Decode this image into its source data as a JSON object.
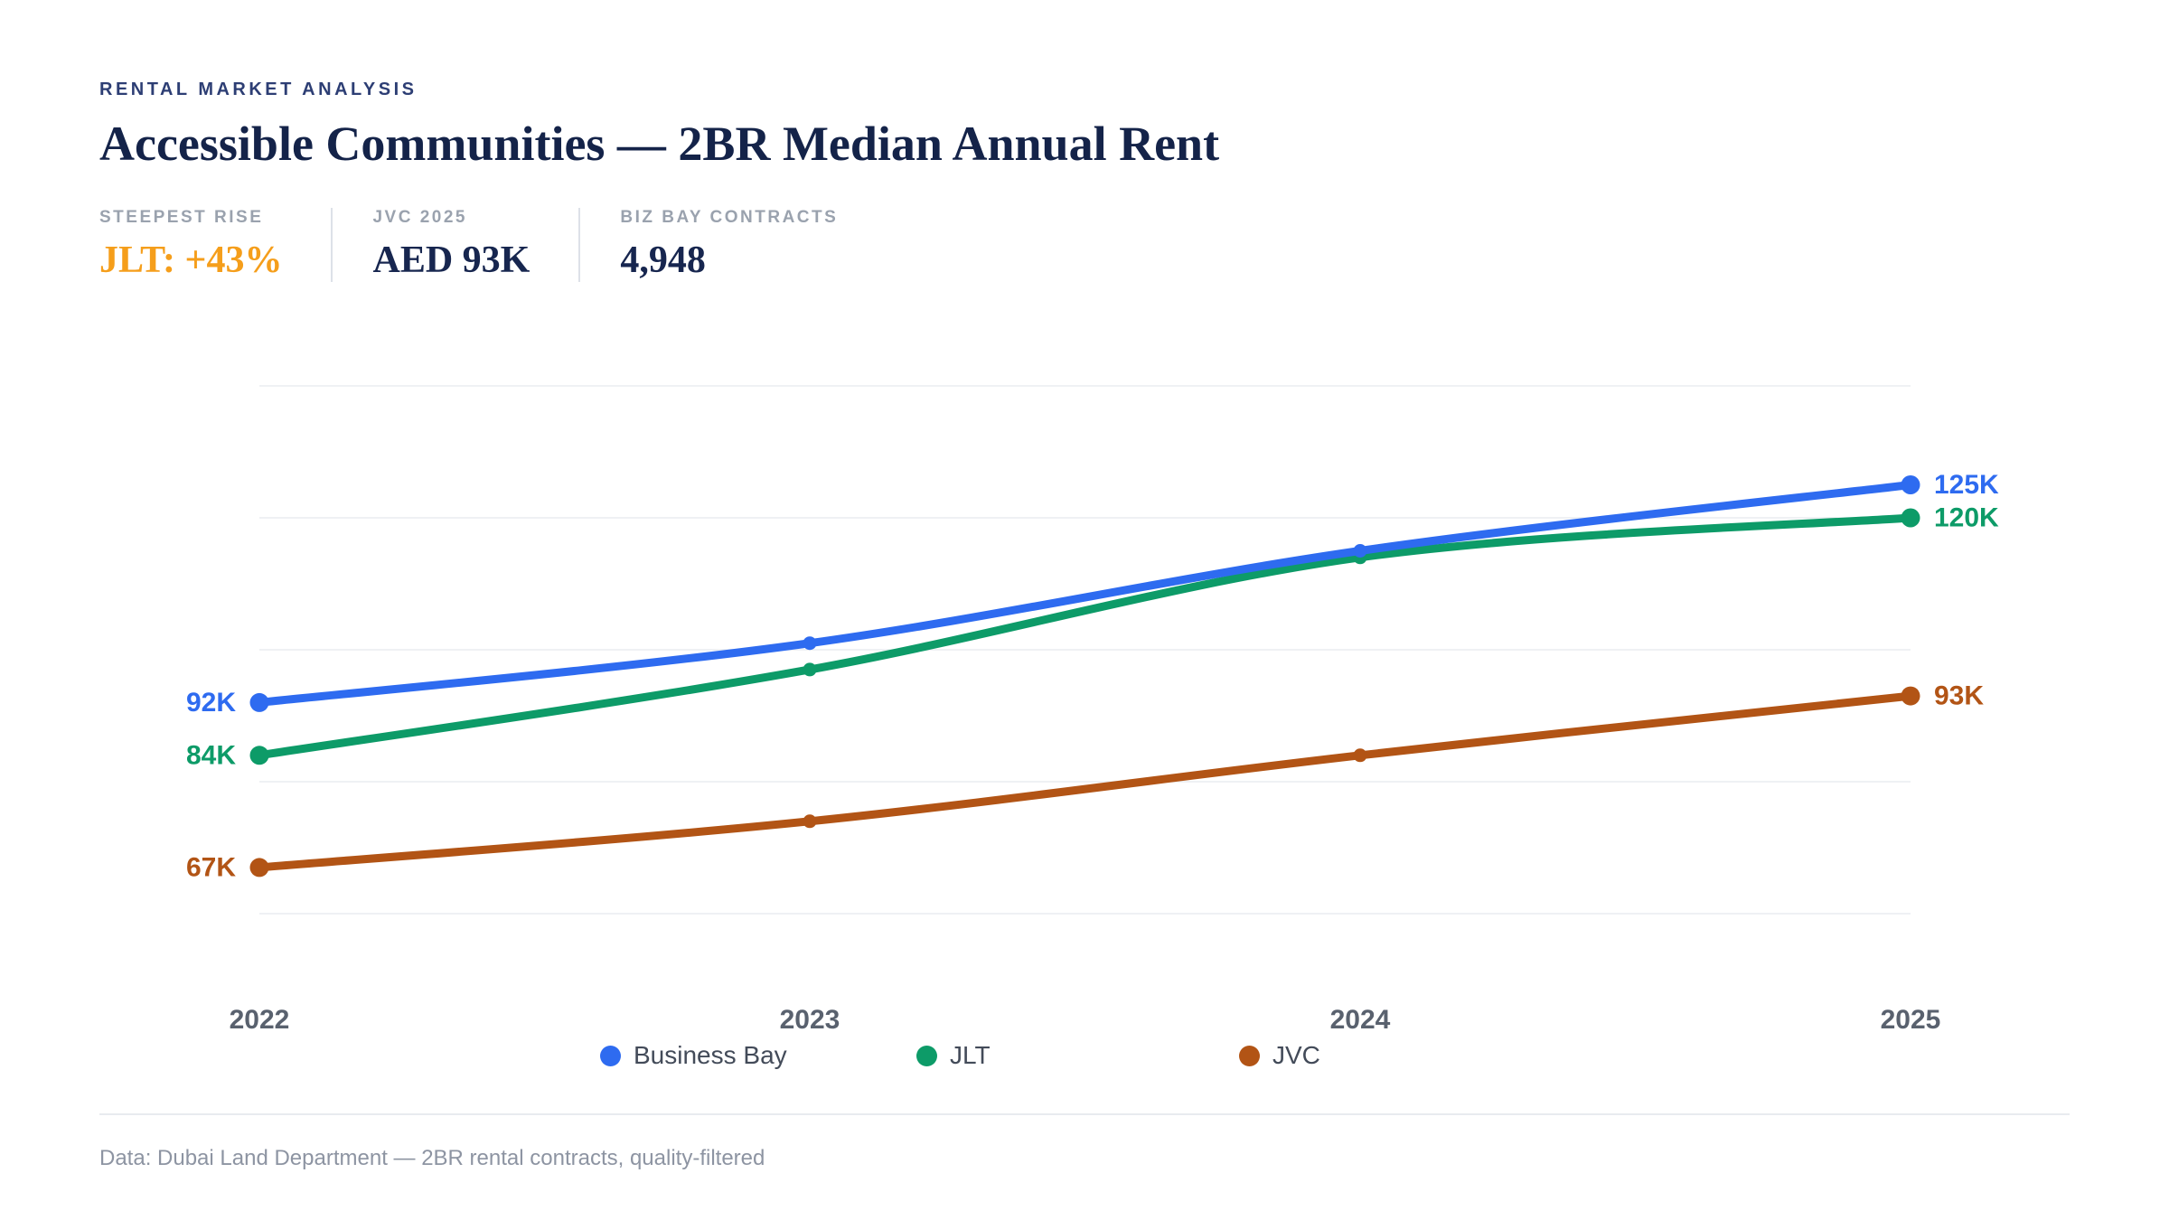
{
  "header": {
    "eyebrow": "RENTAL MARKET ANALYSIS",
    "title": "Accessible Communities — 2BR Median Annual Rent",
    "stats": [
      {
        "label": "STEEPEST RISE",
        "value": "JLT: +43%",
        "highlight": true
      },
      {
        "label": "JVC 2025",
        "value": "AED 93K",
        "highlight": false
      },
      {
        "label": "BIZ BAY CONTRACTS",
        "value": "4,948",
        "highlight": false
      }
    ]
  },
  "footer": {
    "source": "Data: Dubai Land Department — 2BR rental contracts, quality-filtered"
  },
  "colors": {
    "accent_amber": "#f59e1b",
    "title_navy": "#142349",
    "eyebrow_navy": "#2d3e74",
    "stat_label_gray": "#9aa2ae",
    "axis_label_gray": "#59616e",
    "legend_text": "#434b59",
    "gridline": "#eff1f4",
    "business_bay_blue": "#2e6bf0",
    "jlt_green": "#0d9b68",
    "jvc_orange": "#b25415"
  },
  "chart_data": {
    "type": "line",
    "title": "Accessible Communities — 2BR Median Annual Rent",
    "categories": [
      "2022",
      "2023",
      "2024",
      "2025"
    ],
    "series": [
      {
        "name": "Business Bay",
        "color": "#2e6bf0",
        "values": [
          92,
          101,
          115,
          125
        ],
        "first_point_label": "92K",
        "last_point_label": "125K"
      },
      {
        "name": "JLT",
        "color": "#0d9b68",
        "values": [
          84,
          97,
          114,
          120
        ],
        "first_point_label": "84K",
        "last_point_label": "120K"
      },
      {
        "name": "JVC",
        "color": "#b25415",
        "values": [
          67,
          74,
          84,
          93
        ],
        "first_point_label": "67K",
        "last_point_label": "93K"
      }
    ],
    "value_unit": "K",
    "ylim": [
      60,
      140
    ],
    "gridline_values": [
      140,
      120,
      100,
      80,
      60
    ],
    "grid": "horizontal-only",
    "y_axis_ticks_visible": false,
    "legend_position": "bottom"
  }
}
